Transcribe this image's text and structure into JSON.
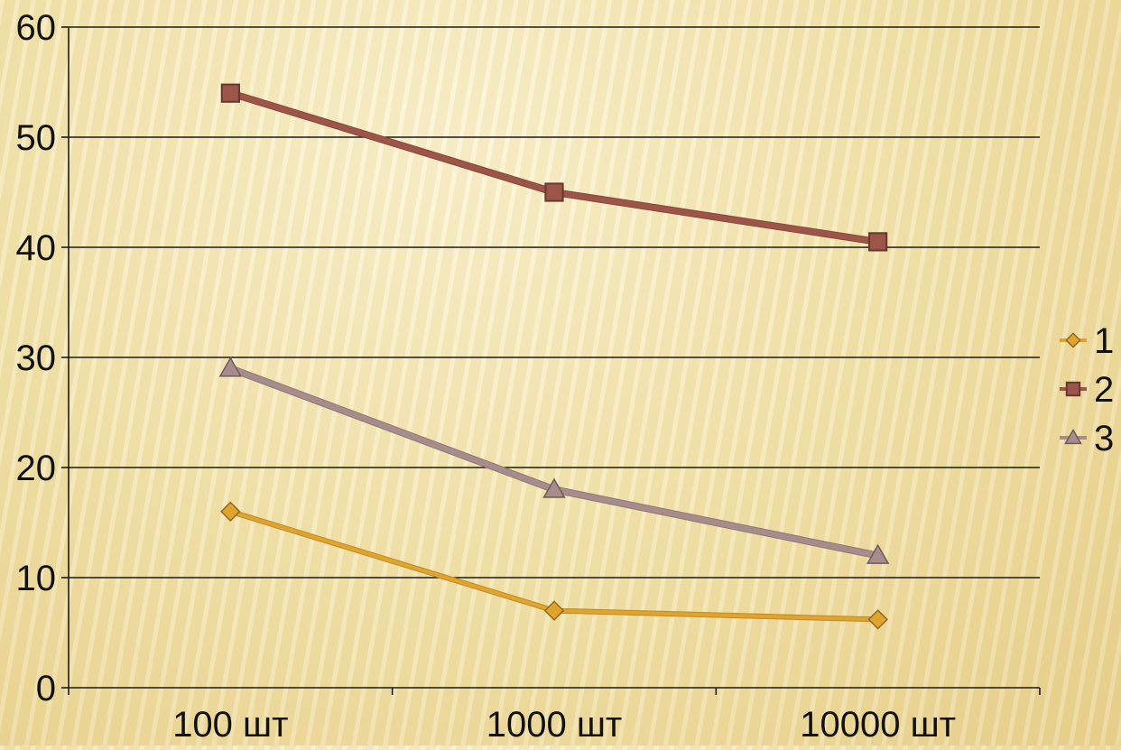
{
  "chart_data": {
    "type": "line",
    "categories": [
      "100 шт",
      "1000 шт",
      "10000 шт"
    ],
    "ylim": [
      0,
      60
    ],
    "yticks": [
      0,
      10,
      20,
      30,
      40,
      50,
      60
    ],
    "grid": true,
    "legend_position": "right",
    "series": [
      {
        "name": "1",
        "values": [
          16,
          7,
          6.2
        ],
        "color": "#e0a32e",
        "marker": "diamond"
      },
      {
        "name": "2",
        "values": [
          54,
          45,
          40.5
        ],
        "color": "#9c5548",
        "marker": "square"
      },
      {
        "name": "3",
        "values": [
          29,
          18,
          12
        ],
        "color": "#a88c8c",
        "marker": "triangle"
      }
    ]
  }
}
